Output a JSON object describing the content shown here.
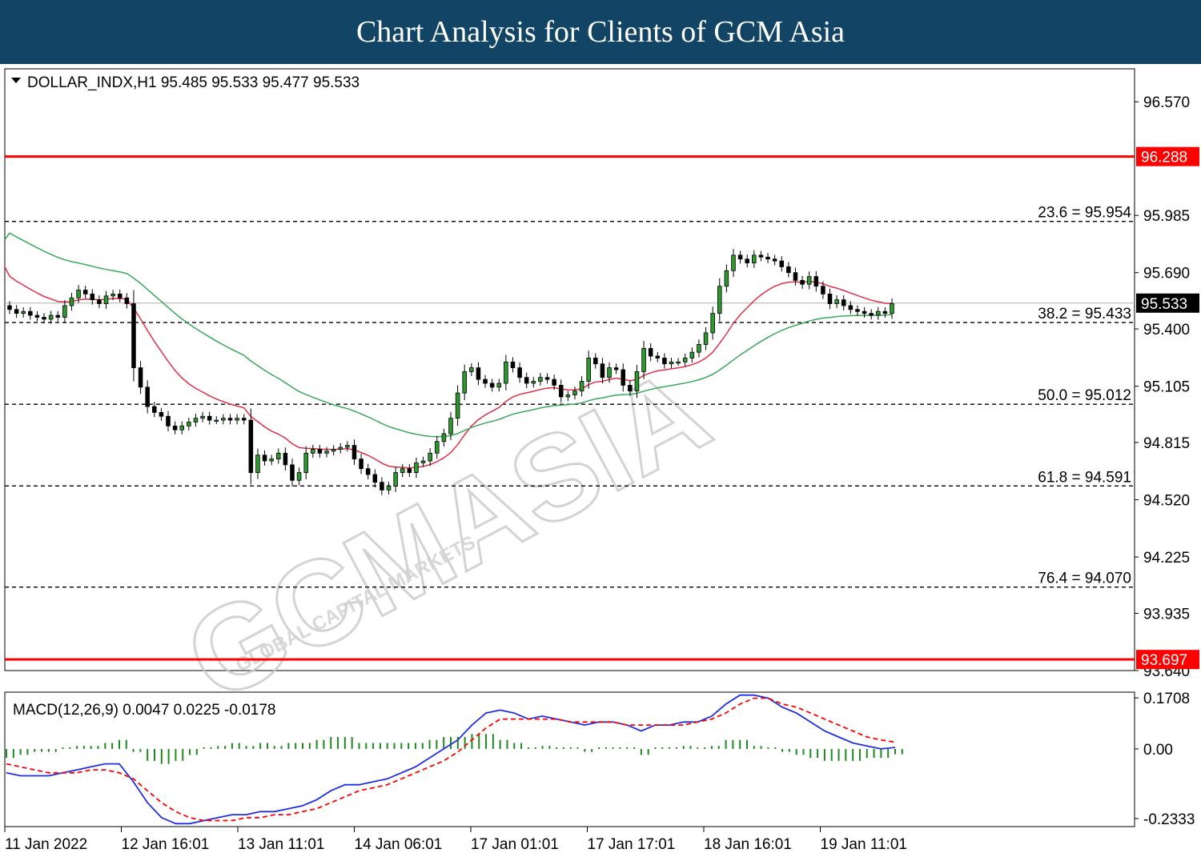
{
  "header": {
    "title": "Chart Analysis for Clients of GCM Asia"
  },
  "colors": {
    "header_bg": "#124466",
    "bull": "#2c9a2c",
    "bear": "#000000",
    "ma_fast": "#e0304a",
    "ma_slow": "#3aa85a",
    "level": "#ff0000",
    "macd": "#1f2fe0",
    "signal": "#ff0000",
    "hist": "#1e8a1e"
  },
  "watermark": {
    "text": "GCMASIA",
    "sub": "GLOBAL CAPITAL MARKETS"
  },
  "chart_data": {
    "type": "candlestick",
    "symbol_info": "DOLLAR_INDX,H1  95.485 95.533 95.477 95.533",
    "ylim": [
      93.64,
      96.74
    ],
    "yticks": [
      "96.570",
      "95.985",
      "95.690",
      "95.400",
      "95.105",
      "94.815",
      "94.520",
      "94.225",
      "93.935",
      "93.640"
    ],
    "xticks": [
      "11 Jan 2022",
      "12 Jan 16:01",
      "13 Jan 11:01",
      "14 Jan 06:01",
      "17 Jan 01:01",
      "17 Jan 17:01",
      "18 Jan 16:01",
      "19 Jan 11:01"
    ],
    "current_price": "95.533",
    "levels": [
      {
        "value": 96.288,
        "label": "96.288",
        "style": "resistance"
      },
      {
        "value": 93.697,
        "label": "93.697",
        "style": "support"
      }
    ],
    "fibo": [
      {
        "value": 95.954,
        "label": "23.6 = 95.954"
      },
      {
        "value": 95.433,
        "label": "38.2 = 95.433"
      },
      {
        "value": 95.012,
        "label": "50.0 = 95.012"
      },
      {
        "value": 94.591,
        "label": "61.8 = 94.591"
      },
      {
        "value": 94.07,
        "label": "76.4 = 94.070"
      }
    ],
    "candles_close": [
      95.5,
      95.48,
      95.49,
      95.47,
      95.46,
      95.45,
      95.47,
      95.46,
      95.52,
      95.56,
      95.6,
      95.58,
      95.55,
      95.53,
      95.57,
      95.58,
      95.56,
      95.53,
      95.2,
      95.1,
      95.0,
      94.97,
      94.95,
      94.9,
      94.88,
      94.9,
      94.92,
      94.94,
      94.95,
      94.93,
      94.93,
      94.94,
      94.93,
      94.94,
      94.93,
      94.66,
      94.75,
      94.72,
      94.73,
      94.76,
      94.7,
      94.62,
      94.66,
      94.76,
      94.78,
      94.76,
      94.77,
      94.78,
      94.79,
      94.8,
      94.73,
      94.68,
      94.65,
      94.61,
      94.57,
      94.59,
      94.66,
      94.68,
      94.66,
      94.71,
      94.72,
      94.76,
      94.82,
      94.86,
      94.94,
      95.07,
      95.18,
      95.2,
      95.14,
      95.12,
      95.1,
      95.12,
      95.23,
      95.2,
      95.15,
      95.12,
      95.13,
      95.15,
      95.14,
      95.11,
      95.05,
      95.06,
      95.08,
      95.13,
      95.25,
      95.22,
      95.15,
      95.2,
      95.19,
      95.11,
      95.08,
      95.18,
      95.3,
      95.26,
      95.25,
      95.22,
      95.23,
      95.23,
      95.25,
      95.28,
      95.32,
      95.38,
      95.48,
      95.62,
      95.7,
      95.78,
      95.76,
      95.74,
      95.78,
      95.77,
      95.76,
      95.75,
      95.72,
      95.69,
      95.65,
      95.63,
      95.67,
      95.62,
      95.58,
      95.53,
      95.55,
      95.52,
      95.5,
      95.49,
      95.48,
      95.47,
      95.49,
      95.48,
      95.53
    ],
    "macd_params": "MACD(12,26,9) 0.0047 0.0225 -0.0178",
    "macd_yticks": [
      "0.1708",
      "0.00",
      "-0.2333"
    ],
    "macd_ylim": [
      -0.26,
      0.19
    ],
    "macd_line": [
      -0.08,
      -0.09,
      -0.09,
      -0.09,
      -0.08,
      -0.07,
      -0.06,
      -0.05,
      -0.05,
      -0.11,
      -0.18,
      -0.23,
      -0.25,
      -0.25,
      -0.24,
      -0.23,
      -0.22,
      -0.22,
      -0.21,
      -0.21,
      -0.2,
      -0.19,
      -0.17,
      -0.14,
      -0.12,
      -0.12,
      -0.11,
      -0.1,
      -0.08,
      -0.06,
      -0.03,
      0.0,
      0.03,
      0.08,
      0.12,
      0.13,
      0.12,
      0.1,
      0.11,
      0.1,
      0.09,
      0.08,
      0.09,
      0.09,
      0.08,
      0.06,
      0.08,
      0.08,
      0.09,
      0.09,
      0.11,
      0.15,
      0.18,
      0.18,
      0.17,
      0.14,
      0.12,
      0.09,
      0.06,
      0.04,
      0.02,
      0.01,
      0.0,
      0.005
    ],
    "signal_line": [
      -0.05,
      -0.06,
      -0.07,
      -0.08,
      -0.08,
      -0.08,
      -0.07,
      -0.07,
      -0.08,
      -0.1,
      -0.14,
      -0.18,
      -0.21,
      -0.23,
      -0.24,
      -0.24,
      -0.24,
      -0.23,
      -0.23,
      -0.22,
      -0.22,
      -0.21,
      -0.2,
      -0.18,
      -0.16,
      -0.14,
      -0.13,
      -0.12,
      -0.1,
      -0.08,
      -0.06,
      -0.04,
      -0.01,
      0.03,
      0.07,
      0.1,
      0.1,
      0.1,
      0.1,
      0.1,
      0.09,
      0.09,
      0.09,
      0.09,
      0.08,
      0.08,
      0.08,
      0.08,
      0.08,
      0.09,
      0.1,
      0.12,
      0.15,
      0.17,
      0.17,
      0.15,
      0.14,
      0.12,
      0.1,
      0.08,
      0.06,
      0.04,
      0.03,
      0.0225
    ],
    "histogram": [
      -0.03,
      -0.02,
      -0.01,
      -0.01,
      0.0,
      0.01,
      0.01,
      0.02,
      0.03,
      -0.01,
      -0.04,
      -0.05,
      -0.04,
      -0.02,
      0.0,
      0.01,
      0.02,
      0.01,
      0.02,
      0.01,
      0.02,
      0.02,
      0.03,
      0.04,
      0.04,
      0.02,
      0.02,
      0.02,
      0.02,
      0.02,
      0.03,
      0.04,
      0.04,
      0.05,
      0.05,
      0.03,
      0.02,
      0.0,
      0.01,
      0.0,
      0.0,
      -0.01,
      0.0,
      0.0,
      0.0,
      -0.02,
      0.0,
      0.0,
      0.01,
      0.0,
      0.01,
      0.03,
      0.03,
      0.01,
      0.0,
      -0.01,
      -0.02,
      -0.03,
      -0.04,
      -0.04,
      -0.04,
      -0.03,
      -0.03,
      -0.0178
    ]
  }
}
